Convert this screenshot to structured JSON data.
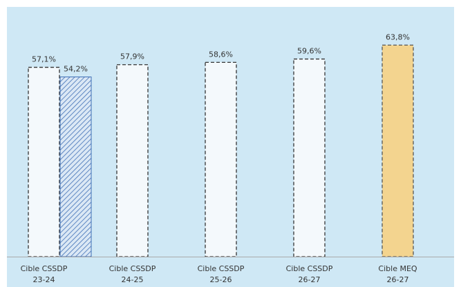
{
  "chart_data": {
    "type": "bar",
    "title": "",
    "xlabel": "",
    "ylabel": "",
    "ylim": [
      0,
      70
    ],
    "grid": false,
    "legend": "none",
    "groups": [
      {
        "label_line1": "Cible CSSDP",
        "label_line2": "23-24",
        "bars": [
          {
            "value": 57.1,
            "label": "57,1%",
            "style": "target"
          },
          {
            "value": 54.2,
            "label": "54,2%",
            "style": "actual"
          }
        ]
      },
      {
        "label_line1": "Cible CSSDP",
        "label_line2": "24-25",
        "bars": [
          {
            "value": 57.9,
            "label": "57,9%",
            "style": "target"
          }
        ]
      },
      {
        "label_line1": "Cible CSSDP",
        "label_line2": "25-26",
        "bars": [
          {
            "value": 58.6,
            "label": "58,6%",
            "style": "target"
          }
        ]
      },
      {
        "label_line1": "Cible CSSDP",
        "label_line2": "26-27",
        "bars": [
          {
            "value": 59.6,
            "label": "59,6%",
            "style": "target"
          }
        ]
      },
      {
        "label_line1": "Cible MEQ",
        "label_line2": "26-27",
        "bars": [
          {
            "value": 63.8,
            "label": "63,8%",
            "style": "meq"
          }
        ]
      }
    ],
    "colors": {
      "background": "#cfe8f5",
      "target_fill": "#f4f9fc",
      "target_stroke": "#333333",
      "actual_fill": "#dbe8f5",
      "actual_hatch": "#3f6fb5",
      "meq_fill": "#f3d48f",
      "meq_stroke": "#555555",
      "axis": "#aaaaaa",
      "text": "#333333"
    }
  }
}
